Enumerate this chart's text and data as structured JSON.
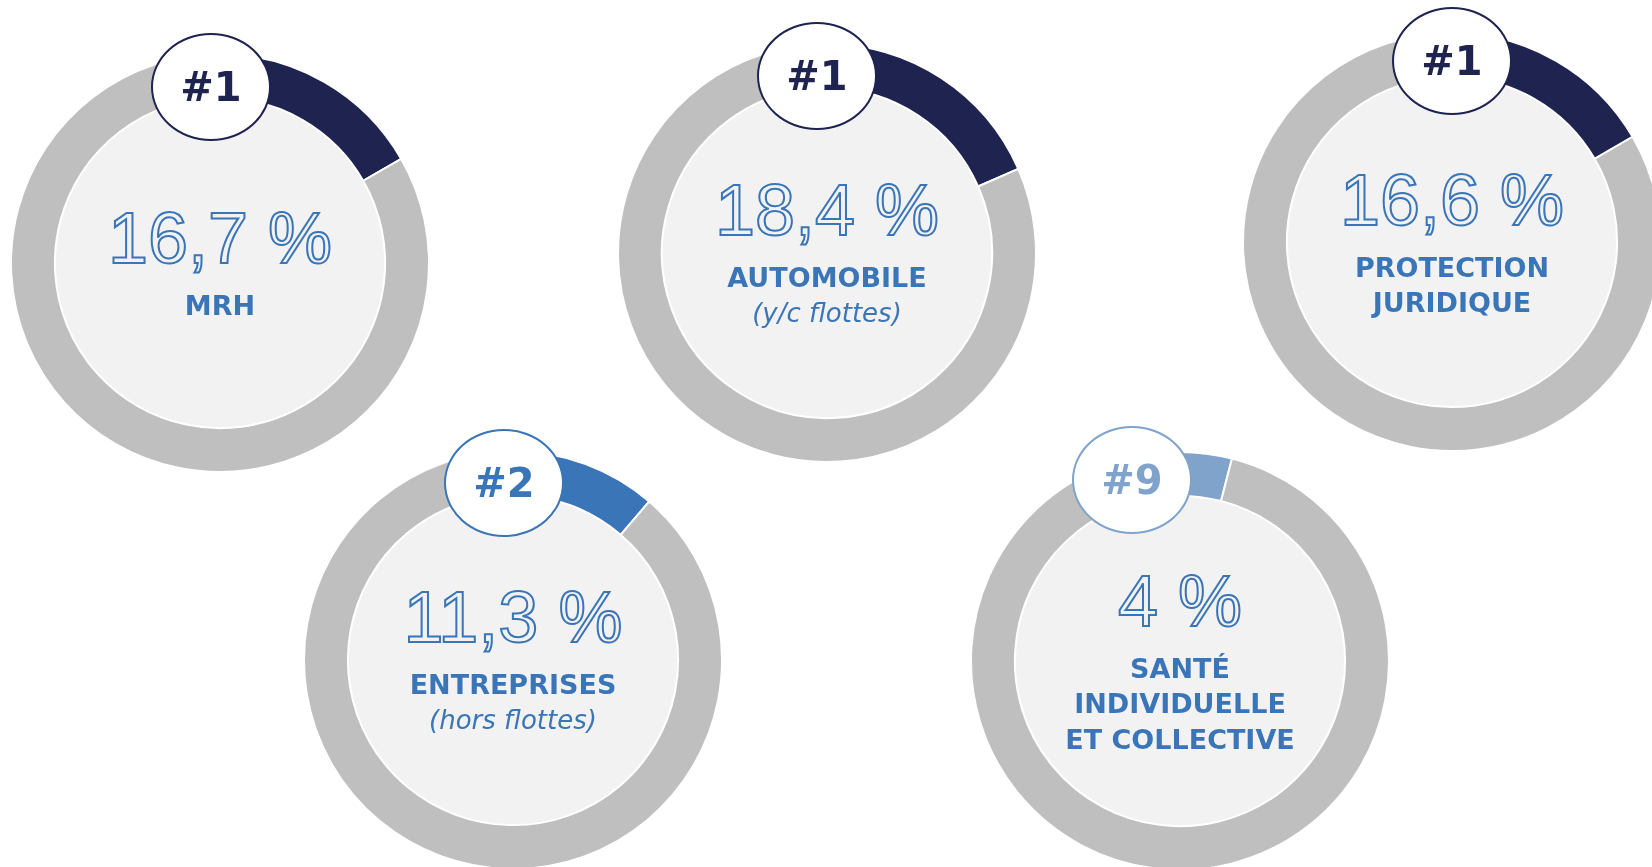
{
  "chart_data": [
    {
      "type": "donut",
      "title": "MRH",
      "categories": [
        null,
        null
      ],
      "values": [
        16.7,
        83.3
      ],
      "value_labels": [
        "16,7 %",
        null
      ],
      "colors": [
        "#1e2350",
        "#bfbfbf"
      ],
      "annotations": [
        "#1"
      ],
      "legend": false
    },
    {
      "type": "donut",
      "title": "AUTOMOBILE",
      "subtitle": "(y/c flottes)",
      "categories": [
        null,
        null
      ],
      "values": [
        18.4,
        81.6
      ],
      "value_labels": [
        "18,4 %",
        null
      ],
      "colors": [
        "#1e2350",
        "#bfbfbf"
      ],
      "annotations": [
        "#1"
      ],
      "legend": false
    },
    {
      "type": "donut",
      "title": "PROTECTION\nJURIDIQUE",
      "categories": [
        null,
        null
      ],
      "values": [
        16.6,
        83.4
      ],
      "value_labels": [
        "16,6 %",
        null
      ],
      "colors": [
        "#1e2350",
        "#bfbfbf"
      ],
      "annotations": [
        "#1"
      ],
      "legend": false
    },
    {
      "type": "donut",
      "title": "ENTREPRISES",
      "subtitle": "(hors flottes)",
      "categories": [
        null,
        null
      ],
      "values": [
        11.3,
        88.7
      ],
      "value_labels": [
        "11,3 %",
        null
      ],
      "colors": [
        "#3a75b8",
        "#bfbfbf"
      ],
      "annotations": [
        "#2"
      ],
      "legend": false
    },
    {
      "type": "donut",
      "title": "SANTÉ\nINDIVIDUELLE\nET COLLECTIVE",
      "categories": [
        null,
        null
      ],
      "values": [
        4,
        96
      ],
      "value_labels": [
        "4 %",
        null
      ],
      "colors": [
        "#7fa3cb",
        "#bfbfbf"
      ],
      "annotations": [
        "#9"
      ],
      "legend": false
    }
  ]
}
